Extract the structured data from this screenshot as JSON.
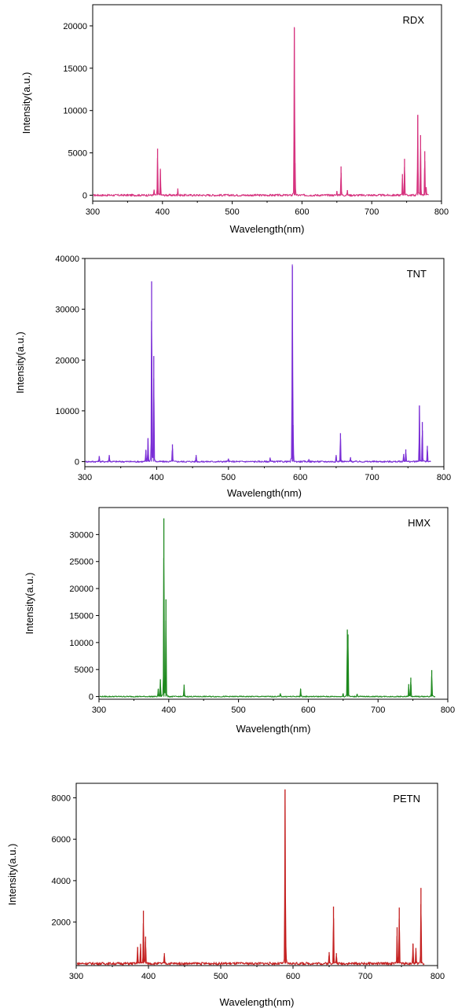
{
  "chart_data": [
    {
      "type": "line",
      "name": "RDX",
      "color": "#d6337f",
      "xlabel": "Wavelength(nm)",
      "ylabel": "Intensity(a.u.)",
      "xlim": [
        300,
        800
      ],
      "ylim": [
        -700,
        22500
      ],
      "xticks": [
        300,
        400,
        500,
        600,
        700,
        800
      ],
      "yticks": [
        0,
        5000,
        10000,
        15000,
        20000
      ],
      "noise": 120,
      "peaks": [
        {
          "x": 388,
          "y": 600
        },
        {
          "x": 393,
          "y": 5500
        },
        {
          "x": 397,
          "y": 3000
        },
        {
          "x": 422,
          "y": 800
        },
        {
          "x": 589,
          "y": 19800
        },
        {
          "x": 590,
          "y": 3800
        },
        {
          "x": 650,
          "y": 500
        },
        {
          "x": 656,
          "y": 3400
        },
        {
          "x": 665,
          "y": 600
        },
        {
          "x": 744,
          "y": 2500
        },
        {
          "x": 747,
          "y": 4300
        },
        {
          "x": 766,
          "y": 9500
        },
        {
          "x": 770,
          "y": 7100
        },
        {
          "x": 776,
          "y": 5200
        },
        {
          "x": 778,
          "y": 800
        }
      ]
    },
    {
      "type": "line",
      "name": "TNT",
      "color": "#7a2ed6",
      "xlabel": "Wavelength(nm)",
      "ylabel": "Intensity(a.u.)",
      "xlim": [
        300,
        800
      ],
      "ylim": [
        -1000,
        40000
      ],
      "xticks": [
        300,
        400,
        500,
        600,
        700,
        800
      ],
      "yticks": [
        0,
        10000,
        20000,
        30000,
        40000
      ],
      "noise": 150,
      "peaks": [
        {
          "x": 320,
          "y": 1100
        },
        {
          "x": 334,
          "y": 1300
        },
        {
          "x": 385,
          "y": 2200
        },
        {
          "x": 388,
          "y": 4600
        },
        {
          "x": 393,
          "y": 35500
        },
        {
          "x": 396,
          "y": 20800
        },
        {
          "x": 422,
          "y": 3400
        },
        {
          "x": 455,
          "y": 1300
        },
        {
          "x": 500,
          "y": 600
        },
        {
          "x": 558,
          "y": 800
        },
        {
          "x": 589,
          "y": 38500
        },
        {
          "x": 590,
          "y": 7200
        },
        {
          "x": 612,
          "y": 500
        },
        {
          "x": 650,
          "y": 1300
        },
        {
          "x": 656,
          "y": 5600
        },
        {
          "x": 670,
          "y": 800
        },
        {
          "x": 744,
          "y": 1500
        },
        {
          "x": 747,
          "y": 2400
        },
        {
          "x": 766,
          "y": 11000
        },
        {
          "x": 770,
          "y": 7800
        },
        {
          "x": 777,
          "y": 3100
        }
      ]
    },
    {
      "type": "line",
      "name": "HMX",
      "color": "#1f8a1f",
      "xlabel": "Wavelength(nm)",
      "ylabel": "Intensity(a.u.)",
      "xlim": [
        300,
        800
      ],
      "ylim": [
        -500,
        35000
      ],
      "xticks": [
        300,
        400,
        500,
        600,
        700,
        800
      ],
      "yticks": [
        0,
        5000,
        10000,
        15000,
        20000,
        25000,
        30000
      ],
      "noise": 100,
      "peaks": [
        {
          "x": 385,
          "y": 1400
        },
        {
          "x": 388,
          "y": 3200
        },
        {
          "x": 393,
          "y": 33000
        },
        {
          "x": 396,
          "y": 18000
        },
        {
          "x": 422,
          "y": 2200
        },
        {
          "x": 560,
          "y": 600
        },
        {
          "x": 589,
          "y": 1400
        },
        {
          "x": 650,
          "y": 600
        },
        {
          "x": 656,
          "y": 12400
        },
        {
          "x": 657,
          "y": 11500
        },
        {
          "x": 670,
          "y": 500
        },
        {
          "x": 744,
          "y": 2300
        },
        {
          "x": 747,
          "y": 3500
        },
        {
          "x": 777,
          "y": 4900
        }
      ]
    },
    {
      "type": "line",
      "name": "PETN",
      "color": "#c42020",
      "xlabel": "Wavelength(nm)",
      "ylabel": "Intensity(a.u.)",
      "xlim": [
        300,
        800
      ],
      "ylim": [
        -100,
        8700
      ],
      "xticks": [
        300,
        400,
        500,
        600,
        700,
        800
      ],
      "yticks": [
        2000,
        4000,
        6000,
        8000
      ],
      "noise": 60,
      "peaks": [
        {
          "x": 385,
          "y": 800
        },
        {
          "x": 389,
          "y": 950
        },
        {
          "x": 393,
          "y": 2550
        },
        {
          "x": 396,
          "y": 1300
        },
        {
          "x": 422,
          "y": 500
        },
        {
          "x": 589,
          "y": 8400
        },
        {
          "x": 590,
          "y": 800
        },
        {
          "x": 650,
          "y": 550
        },
        {
          "x": 656,
          "y": 2750
        },
        {
          "x": 660,
          "y": 500
        },
        {
          "x": 744,
          "y": 1750
        },
        {
          "x": 747,
          "y": 2700
        },
        {
          "x": 766,
          "y": 950
        },
        {
          "x": 770,
          "y": 750
        },
        {
          "x": 777,
          "y": 3650
        }
      ]
    }
  ]
}
